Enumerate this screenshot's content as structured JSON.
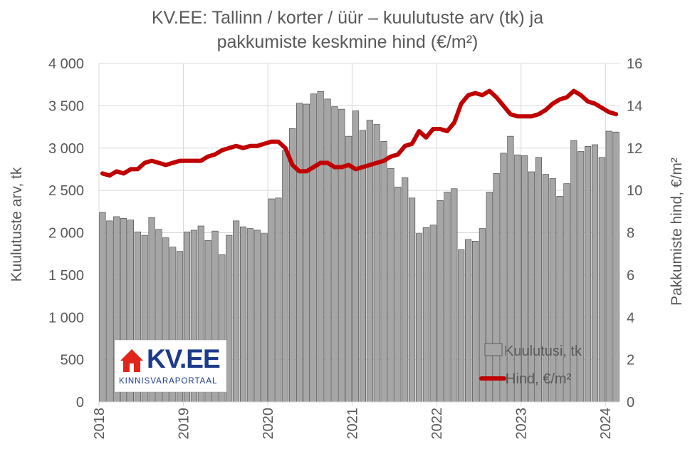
{
  "title": {
    "line1": "KV.EE: Tallinn / korter / üür – kuulutuste arv (tk) ja",
    "line2": "pakkumiste keskmine hind (€/m²)"
  },
  "logo": {
    "name": "KV.EE",
    "tagline": "KINNISVARAPORTAAL"
  },
  "chart_data": {
    "type": "bar",
    "title": "KV.EE: Tallinn / korter / üür – kuulutuste arv (tk) ja pakkumiste keskmine hind (€/m²)",
    "ylabel": "Kuulutuste arv, tk",
    "y2label": "Pakkumiste hind, €/m²",
    "ylim": [
      0,
      4000
    ],
    "y2lim": [
      0,
      16
    ],
    "yticks": [
      "0",
      "500",
      "1 000",
      "1 500",
      "2 000",
      "2 500",
      "3 000",
      "3 500",
      "4 000"
    ],
    "y2ticks": [
      "0",
      "2",
      "4",
      "6",
      "8",
      "10",
      "12",
      "14",
      "16"
    ],
    "xticks": [
      "2018",
      "2019",
      "2020",
      "2021",
      "2022",
      "2023",
      "2024"
    ],
    "grid": true,
    "legend": "bottom-right",
    "colors": {
      "bars": "#a6a6a6",
      "bar_edge": "#404040",
      "line": "#c00000",
      "grid": "#d9d9d9"
    },
    "series": [
      {
        "name": "Kuulutusi, tk",
        "type": "bar",
        "axis": "left",
        "values": [
          2240,
          2140,
          2190,
          2170,
          2150,
          2010,
          1970,
          2180,
          2040,
          1940,
          1830,
          1780,
          2010,
          2030,
          2080,
          1910,
          2020,
          1740,
          1970,
          2140,
          2070,
          2050,
          2030,
          1990,
          2400,
          2410,
          2970,
          3230,
          3530,
          3520,
          3640,
          3670,
          3580,
          3490,
          3460,
          3140,
          3440,
          3210,
          3330,
          3280,
          3080,
          2760,
          2540,
          2650,
          2410,
          1990,
          2060,
          2090,
          2380,
          2480,
          2520,
          1800,
          1920,
          1900,
          2050,
          2480,
          2700,
          2940,
          3140,
          2920,
          2910,
          2720,
          2890,
          2690,
          2640,
          2430,
          2580,
          3090,
          2960,
          3020,
          3040,
          2890,
          3200,
          3190
        ]
      },
      {
        "name": "Hind, €/m²",
        "type": "line",
        "axis": "right",
        "values": [
          10.8,
          10.7,
          10.9,
          10.8,
          11.0,
          11.0,
          11.3,
          11.4,
          11.3,
          11.2,
          11.3,
          11.4,
          11.4,
          11.4,
          11.4,
          11.6,
          11.7,
          11.9,
          12.0,
          12.1,
          12.0,
          12.1,
          12.1,
          12.2,
          12.3,
          12.3,
          12.0,
          11.2,
          10.9,
          10.9,
          11.1,
          11.3,
          11.3,
          11.1,
          11.1,
          11.2,
          11.0,
          11.1,
          11.2,
          11.3,
          11.4,
          11.6,
          11.7,
          12.1,
          12.2,
          12.8,
          12.5,
          12.9,
          12.9,
          12.8,
          13.2,
          14.1,
          14.5,
          14.6,
          14.5,
          14.7,
          14.4,
          14.0,
          13.6,
          13.5,
          13.5,
          13.5,
          13.6,
          13.8,
          14.1,
          14.3,
          14.4,
          14.7,
          14.5,
          14.2,
          14.1,
          13.9,
          13.7,
          13.6
        ]
      }
    ]
  }
}
